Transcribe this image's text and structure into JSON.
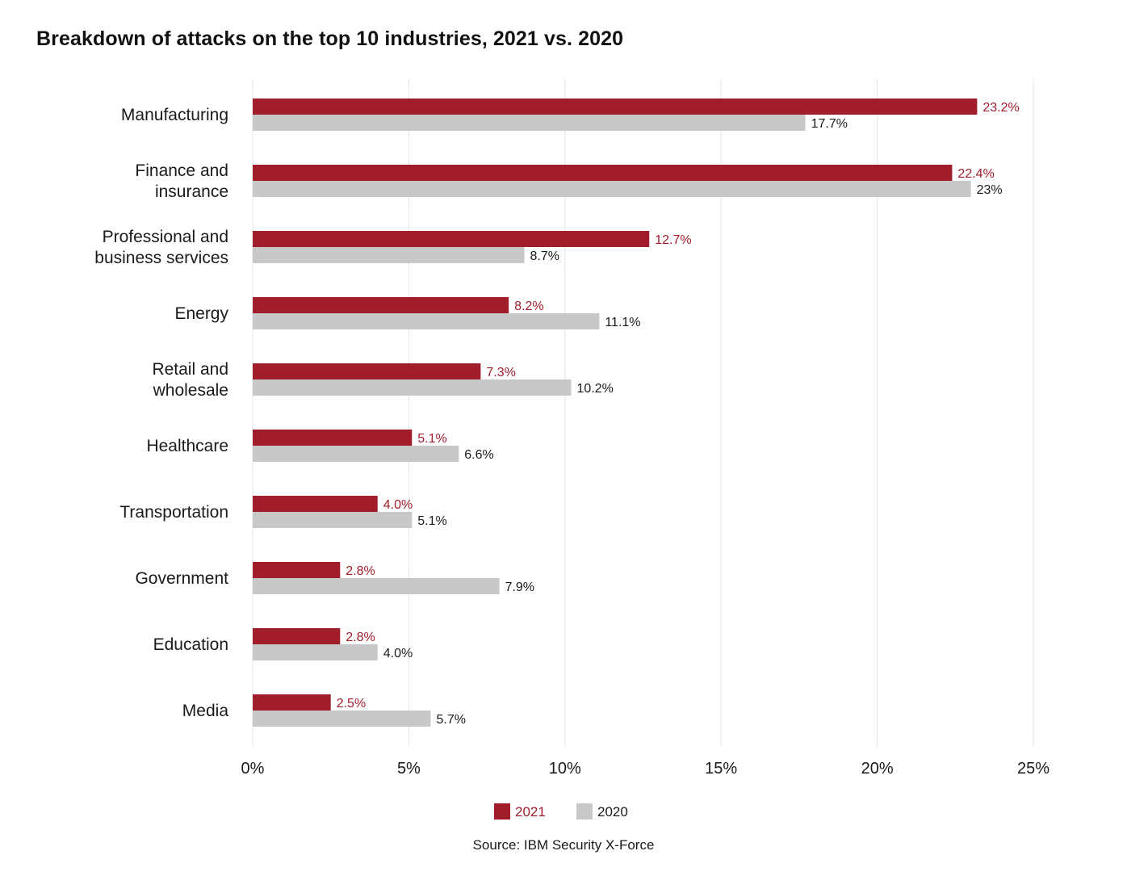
{
  "title": "Breakdown of attacks on the top 10 industries, 2021 vs. 2020",
  "source": "Source: IBM Security X-Force",
  "colors": {
    "2021": "#a21d2c",
    "2020": "#c8c8c8",
    "label2021": "#a21d2c",
    "label2020": "#1a1a1a",
    "grid": "#e4e4e4"
  },
  "chart_data": {
    "type": "bar",
    "orientation": "horizontal",
    "categories": [
      [
        "Manufacturing"
      ],
      [
        "Finance and",
        "insurance"
      ],
      [
        "Professional and",
        "business services"
      ],
      [
        "Energy"
      ],
      [
        "Retail and",
        "wholesale"
      ],
      [
        "Healthcare"
      ],
      [
        "Transportation"
      ],
      [
        "Government"
      ],
      [
        "Education"
      ],
      [
        "Media"
      ]
    ],
    "series": [
      {
        "name": "2021",
        "values": [
          23.2,
          22.4,
          12.7,
          8.2,
          7.3,
          5.1,
          4.0,
          2.8,
          2.8,
          2.5
        ],
        "labels": [
          "23.2%",
          "22.4%",
          "12.7%",
          "8.2%",
          "7.3%",
          "5.1%",
          "4.0%",
          "2.8%",
          "2.8%",
          "2.5%"
        ]
      },
      {
        "name": "2020",
        "values": [
          17.7,
          23,
          8.7,
          11.1,
          10.2,
          6.6,
          5.1,
          7.9,
          4.0,
          5.7
        ],
        "labels": [
          "17.7%",
          "23%",
          "8.7%",
          "11.1%",
          "10.2%",
          "6.6%",
          "5.1%",
          "7.9%",
          "4.0%",
          "5.7%"
        ]
      }
    ],
    "xlim": [
      0,
      25
    ],
    "xticks": [
      0,
      5,
      10,
      15,
      20,
      25
    ],
    "xtick_labels": [
      "0%",
      "5%",
      "10%",
      "15%",
      "20%",
      "25%"
    ],
    "grid": true,
    "legend": "bottom-center"
  }
}
